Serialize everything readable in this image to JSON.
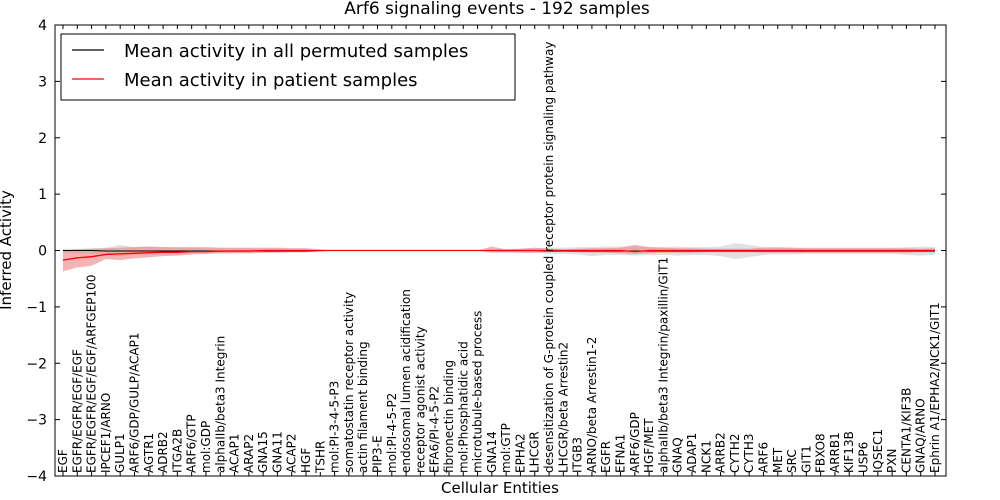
{
  "chart_data": {
    "type": "line",
    "title": "Arf6 signaling events - 192 samples",
    "xlabel": "Cellular Entities",
    "ylabel": "Inferred Activity",
    "ylim": [
      -4,
      4
    ],
    "yticks": [
      -4,
      -3,
      -2,
      -1,
      0,
      1,
      2,
      3,
      4
    ],
    "ytick_labels": [
      "−4",
      "−3",
      "−2",
      "−1",
      "0",
      "1",
      "2",
      "3",
      "4"
    ],
    "legend": {
      "placement": "top-left",
      "entries": [
        {
          "label": "Mean activity in all permuted samples",
          "color": "#000000"
        },
        {
          "label": "Mean activity in patient samples",
          "color": "#ff0000"
        }
      ]
    },
    "categories": [
      "EGF",
      "EGFR/EGFR/EGF/EGF",
      "EGFR/EGFR/EGF/EGF/ARFGEP100",
      "IPCEF1/ARNO",
      "GULP1",
      "ARF6/GDP/GULP/ACAP1",
      "AGTR1",
      "ADRB2",
      "ITGA2B",
      "ARF6/GTP",
      "mol:GDP",
      "alphaIIb/beta3 Integrin",
      "ACAP1",
      "ARAP2",
      "GNA15",
      "GNA11",
      "ACAP2",
      "HGF",
      "TSHR",
      "mol:PI-3-4-5-P3",
      "somatostatin receptor activity",
      "actin filament binding",
      "PIP3-E",
      "mol:PI-4-5-P2",
      "endosomal lumen acidification",
      "receptor agonist activity",
      "EFA6/PI-4-5-P2",
      "fibronectin binding",
      "mol:Phosphatidic acid",
      "microtubule-based process",
      "GNA14",
      "mol:GTP",
      "EPHA2",
      "LHCGR",
      "desensitization of G-protein coupled receptor protein signaling pathway",
      "LHCGR/beta Arrestin2",
      "ITGB3",
      "ARNO/beta Arrestin1-2",
      "EGFR",
      "EFNA1",
      "ARF6/GDP",
      "HGF/MET",
      "alphaIIb/beta3 Integrin/paxillin/GIT1",
      "GNAQ",
      "ADAP1",
      "NCK1",
      "ARRB2",
      "CYTH2",
      "CYTH3",
      "ARF6",
      "MET",
      "SRC",
      "GIT1",
      "FBXO8",
      "ARRB1",
      "KIF13B",
      "USP6",
      "IQSEC1",
      "PXN",
      "CENTA1/KIF3B",
      "GNAQ/ARNO",
      "Ephrin A1/EPHA2/NCK1/GIT1"
    ],
    "series": [
      {
        "name": "Mean activity in all permuted samples",
        "color": "#000000",
        "values": [
          0.0,
          0.0,
          0.0,
          -0.01,
          -0.01,
          -0.01,
          -0.01,
          -0.01,
          -0.01,
          -0.01,
          -0.01,
          -0.01,
          -0.01,
          -0.01,
          -0.01,
          -0.01,
          -0.01,
          -0.01,
          0.0,
          0.0,
          0.0,
          0.0,
          0.0,
          0.0,
          0.0,
          0.0,
          0.0,
          0.0,
          0.0,
          0.0,
          0.0,
          0.0,
          0.0,
          0.0,
          -0.01,
          -0.01,
          -0.01,
          -0.01,
          -0.01,
          -0.01,
          -0.01,
          -0.01,
          -0.01,
          -0.01,
          -0.01,
          -0.01,
          -0.01,
          -0.01,
          -0.01,
          -0.01,
          -0.01,
          -0.01,
          -0.01,
          -0.01,
          -0.01,
          -0.01,
          -0.01,
          -0.01,
          -0.01,
          -0.01,
          -0.01,
          -0.01
        ],
        "band_upper": [
          0.03,
          0.03,
          0.04,
          0.05,
          0.1,
          0.06,
          0.07,
          0.06,
          0.05,
          0.05,
          0.04,
          0.04,
          0.04,
          0.04,
          0.03,
          0.03,
          0.03,
          0.03,
          0.01,
          0.0,
          0.0,
          0.0,
          0.0,
          0.0,
          0.0,
          0.0,
          0.0,
          0.0,
          0.0,
          0.0,
          0.02,
          0.03,
          0.03,
          0.04,
          0.05,
          0.05,
          0.06,
          0.06,
          0.07,
          0.07,
          0.07,
          0.06,
          0.06,
          0.07,
          0.06,
          0.06,
          0.07,
          0.13,
          0.1,
          0.06,
          0.06,
          0.05,
          0.05,
          0.05,
          0.05,
          0.05,
          0.05,
          0.05,
          0.05,
          0.06,
          0.07,
          0.06
        ],
        "band_lower": [
          -0.04,
          -0.05,
          -0.06,
          -0.08,
          -0.1,
          -0.08,
          -0.08,
          -0.07,
          -0.06,
          -0.05,
          -0.05,
          -0.05,
          -0.04,
          -0.04,
          -0.03,
          -0.03,
          -0.03,
          -0.03,
          -0.01,
          0.0,
          0.0,
          0.0,
          0.0,
          0.0,
          0.0,
          0.0,
          0.0,
          0.0,
          0.0,
          0.0,
          -0.02,
          -0.03,
          -0.03,
          -0.04,
          -0.06,
          -0.06,
          -0.07,
          -0.1,
          -0.08,
          -0.08,
          -0.09,
          -0.08,
          -0.08,
          -0.09,
          -0.08,
          -0.08,
          -0.1,
          -0.15,
          -0.12,
          -0.08,
          -0.07,
          -0.07,
          -0.06,
          -0.06,
          -0.06,
          -0.06,
          -0.06,
          -0.06,
          -0.06,
          -0.08,
          -0.09,
          -0.08
        ]
      },
      {
        "name": "Mean activity in patient samples",
        "color": "#ff0000",
        "band_color": "#f08080",
        "values": [
          -0.17,
          -0.13,
          -0.11,
          -0.07,
          -0.06,
          -0.05,
          -0.04,
          -0.03,
          -0.03,
          -0.02,
          -0.02,
          -0.01,
          -0.01,
          -0.01,
          0.0,
          0.0,
          0.0,
          0.0,
          0.0,
          0.0,
          0.0,
          0.0,
          0.0,
          0.0,
          0.0,
          0.0,
          0.0,
          0.0,
          0.0,
          0.0,
          0.0,
          0.0,
          0.0,
          0.0,
          0.0,
          0.0,
          0.0,
          0.0,
          0.0,
          0.0,
          -0.02,
          0.0,
          0.0,
          0.0,
          0.0,
          0.0,
          0.0,
          0.0,
          0.0,
          0.0,
          0.0,
          0.0,
          0.0,
          0.0,
          0.0,
          0.0,
          0.0,
          0.0,
          0.0,
          0.0,
          0.0,
          0.0
        ],
        "band_upper": [
          0.0,
          0.02,
          0.03,
          0.04,
          0.05,
          0.06,
          0.07,
          0.06,
          0.06,
          0.06,
          0.06,
          0.05,
          0.05,
          0.05,
          0.05,
          0.05,
          0.04,
          0.04,
          0.02,
          0.0,
          0.0,
          0.0,
          0.0,
          0.0,
          0.0,
          0.0,
          0.0,
          0.0,
          0.0,
          0.0,
          0.07,
          0.02,
          0.03,
          0.05,
          0.03,
          0.02,
          0.03,
          0.04,
          0.04,
          0.05,
          0.1,
          0.06,
          0.05,
          0.04,
          0.04,
          0.03,
          0.03,
          0.03,
          0.03,
          0.05,
          0.05,
          0.05,
          0.04,
          0.04,
          0.04,
          0.04,
          0.04,
          0.04,
          0.04,
          0.04,
          0.03,
          0.04
        ],
        "band_lower": [
          -0.37,
          -0.3,
          -0.27,
          -0.15,
          -0.17,
          -0.14,
          -0.12,
          -0.1,
          -0.09,
          -0.07,
          -0.06,
          -0.05,
          -0.05,
          -0.05,
          -0.04,
          -0.04,
          -0.03,
          -0.03,
          -0.02,
          0.0,
          0.0,
          0.0,
          0.0,
          0.0,
          0.0,
          0.0,
          0.0,
          0.0,
          0.0,
          0.0,
          -0.04,
          -0.03,
          -0.04,
          -0.04,
          -0.03,
          -0.02,
          -0.03,
          -0.04,
          -0.04,
          -0.05,
          -0.06,
          -0.05,
          -0.04,
          -0.04,
          -0.04,
          -0.03,
          -0.03,
          -0.03,
          -0.03,
          -0.04,
          -0.04,
          -0.04,
          -0.04,
          -0.04,
          -0.04,
          -0.04,
          -0.04,
          -0.04,
          -0.04,
          -0.04,
          -0.03,
          -0.03
        ]
      }
    ]
  }
}
